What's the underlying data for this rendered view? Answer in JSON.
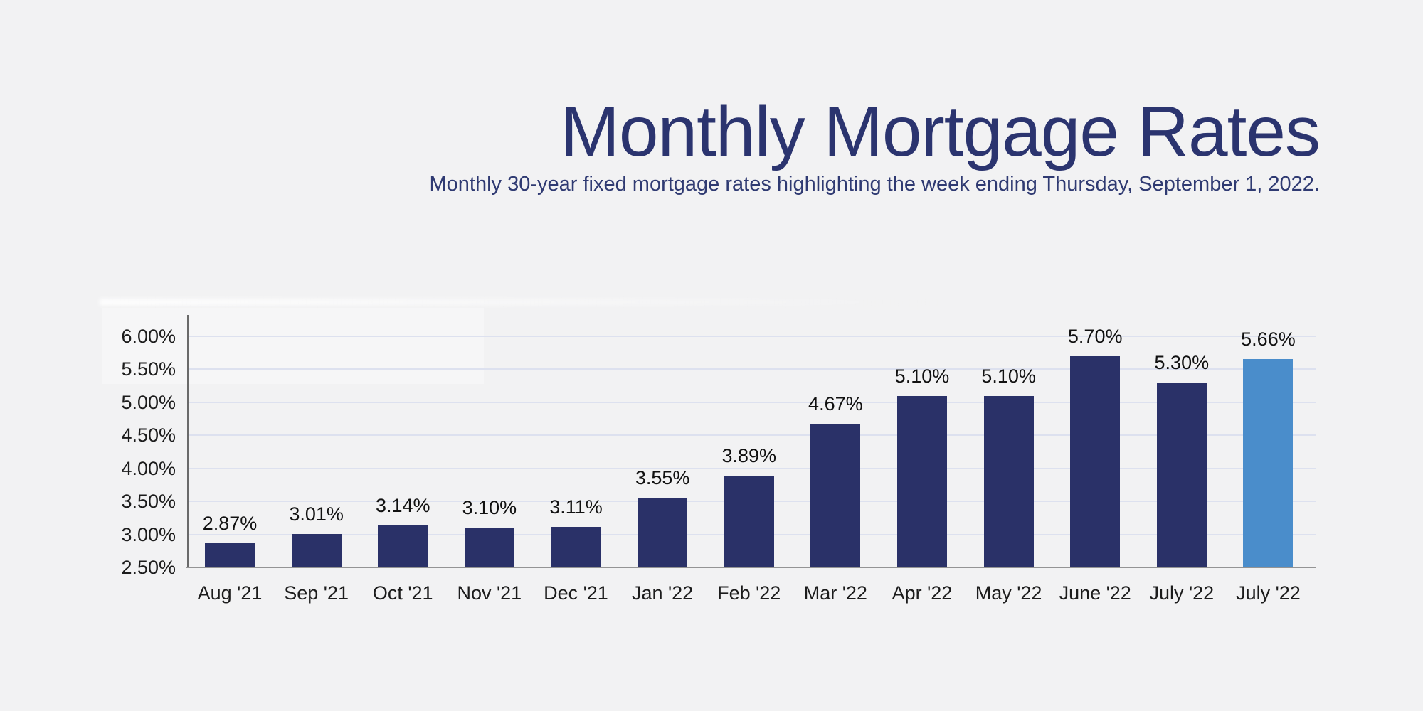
{
  "page": {
    "background": "#f2f2f3"
  },
  "header": {
    "title": "Monthly Mortgage Rates",
    "subtitle": "Monthly 30-year fixed mortgage rates highlighting the week ending Thursday, September 1, 2022."
  },
  "chart_data": {
    "type": "bar",
    "title": "Monthly Mortgage Rates",
    "subtitle": "Monthly 30-year fixed mortgage rates highlighting the week ending Thursday, September 1, 2022.",
    "xlabel": "",
    "ylabel": "",
    "categories": [
      "Aug '21",
      "Sep '21",
      "Oct '21",
      "Nov '21",
      "Dec '21",
      "Jan '22",
      "Feb '22",
      "Mar '22",
      "Apr '22",
      "May '22",
      "June '22",
      "July '22",
      "July '22"
    ],
    "values": [
      2.87,
      3.01,
      3.14,
      3.1,
      3.11,
      3.55,
      3.89,
      4.67,
      5.1,
      5.1,
      5.7,
      5.3,
      5.66
    ],
    "bar_labels": [
      "2.87%",
      "3.01%",
      "3.14%",
      "3.10%",
      "3.11%",
      "3.55%",
      "3.89%",
      "4.67%",
      "5.10%",
      "5.10%",
      "5.70%",
      "5.30%",
      "5.66%"
    ],
    "highlighted_bar_index": 12,
    "highlight_meaning": "latest week ending Thursday, September 1, 2022",
    "yticks": [
      "2.50%",
      "3.00%",
      "3.50%",
      "4.00%",
      "4.50%",
      "5.00%",
      "5.50%",
      "6.00%"
    ],
    "ytick_values": [
      2.5,
      3.0,
      3.5,
      4.0,
      4.5,
      5.0,
      5.5,
      6.0
    ],
    "ylim": [
      2.5,
      6.3
    ],
    "grid": true,
    "legend": "none",
    "colors": {
      "bar": "#2a3168",
      "highlighted_bar": "#4a8dcb",
      "gridline": "#dde1ef",
      "y_axis_line": "#6a6a6a",
      "x_axis_line": "#949494",
      "tick_label": "#1c1c1c",
      "value_label": "#111111",
      "title": "#2b346f",
      "subtitle": "#2f3a72"
    }
  }
}
